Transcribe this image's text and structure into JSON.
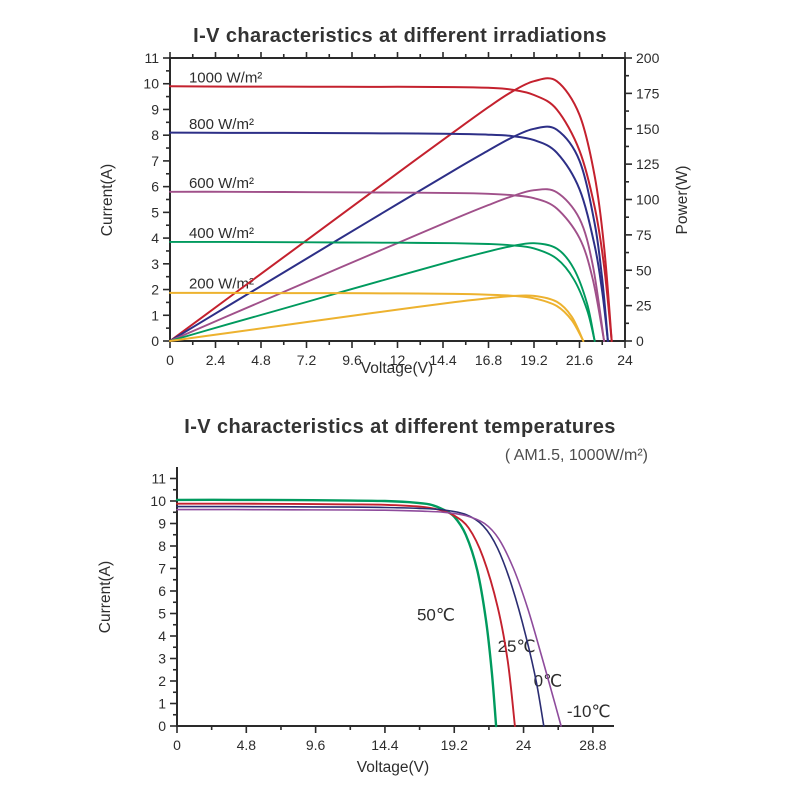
{
  "page": {
    "background": "#ffffff"
  },
  "chart_data": [
    {
      "type": "line",
      "title": "I-V characteristics at different irradiations",
      "xlabel": "Voltage(V)",
      "ylabel_left": "Current(A)",
      "ylabel_right": "Power(W)",
      "xlim": [
        0,
        24
      ],
      "ylim_left": [
        0,
        11
      ],
      "ylim_right": [
        0,
        200
      ],
      "grid": false,
      "frame": "box",
      "x_ticks": [
        "0",
        "2.4",
        "4.8",
        "7.2",
        "9.6",
        "12",
        "14.4",
        "16.8",
        "19.2",
        "21.6",
        "24"
      ],
      "x_minor_step": 1.2,
      "y_left_ticks": [
        "0",
        "1",
        "2",
        "3",
        "4",
        "5",
        "6",
        "7",
        "8",
        "9",
        "10",
        "11"
      ],
      "y_left_minor_step": 0.5,
      "y_right_ticks": [
        "0",
        "25",
        "50",
        "75",
        "100",
        "125",
        "150",
        "175",
        "200"
      ],
      "y_right_minor_step": 12.5,
      "labels": [
        {
          "text": "1000 W/m²",
          "x": 1.0,
          "y": 10.05,
          "anchor": "start",
          "color": "#3a3a3a"
        },
        {
          "text": "800 W/m²",
          "x": 1.0,
          "y": 8.25,
          "anchor": "start",
          "color": "#3a3a3a"
        },
        {
          "text": "600 W/m²",
          "x": 1.0,
          "y": 5.95,
          "anchor": "start",
          "color": "#3a3a3a"
        },
        {
          "text": "400 W/m²",
          "x": 1.0,
          "y": 4.0,
          "anchor": "start",
          "color": "#3a3a3a"
        },
        {
          "text": "200 W/m²",
          "x": 1.0,
          "y": 2.04,
          "anchor": "start",
          "color": "#3a3a3a"
        }
      ],
      "series": [
        {
          "name": "1000 W/m2 current",
          "axis": "left",
          "color": "#c4212e",
          "width": 2,
          "points": [
            [
              0,
              9.9
            ],
            [
              3,
              9.89
            ],
            [
              6,
              9.89
            ],
            [
              9,
              9.88
            ],
            [
              12,
              9.88
            ],
            [
              15,
              9.87
            ],
            [
              16.8,
              9.84
            ],
            [
              18,
              9.77
            ],
            [
              19.2,
              9.56
            ],
            [
              20.4,
              9.0
            ],
            [
              21.6,
              7.4
            ],
            [
              22.4,
              5.2
            ],
            [
              22.9,
              2.9
            ],
            [
              23.3,
              0
            ]
          ]
        },
        {
          "name": "1000 W/m2 power",
          "axis": "right",
          "color": "#c4212e",
          "width": 2,
          "points": [
            [
              0,
              0
            ],
            [
              3,
              29.7
            ],
            [
              6,
              59.3
            ],
            [
              9,
              88.9
            ],
            [
              12,
              118.6
            ],
            [
              15,
              148
            ],
            [
              16.8,
              165.3
            ],
            [
              18,
              175.9
            ],
            [
              19.2,
              183.6
            ],
            [
              20.4,
              183.6
            ],
            [
              21.6,
              159.8
            ],
            [
              22.4,
              116.5
            ],
            [
              22.9,
              66.4
            ],
            [
              23.3,
              0
            ]
          ]
        },
        {
          "name": "800 W/m2 current",
          "axis": "left",
          "color": "#2d2f87",
          "width": 2,
          "points": [
            [
              0,
              8.1
            ],
            [
              3,
              8.09
            ],
            [
              6,
              8.09
            ],
            [
              9,
              8.08
            ],
            [
              12,
              8.07
            ],
            [
              15,
              8.05
            ],
            [
              16.8,
              8.02
            ],
            [
              18,
              7.97
            ],
            [
              19.2,
              7.81
            ],
            [
              20.4,
              7.32
            ],
            [
              21.6,
              5.9
            ],
            [
              22.4,
              3.7
            ],
            [
              22.8,
              1.9
            ],
            [
              23.1,
              0
            ]
          ]
        },
        {
          "name": "800 W/m2 power",
          "axis": "right",
          "color": "#2d2f87",
          "width": 2,
          "points": [
            [
              0,
              0
            ],
            [
              3,
              24.3
            ],
            [
              6,
              48.5
            ],
            [
              9,
              72.7
            ],
            [
              12,
              96.8
            ],
            [
              15,
              120.8
            ],
            [
              16.8,
              134.7
            ],
            [
              18,
              143.5
            ],
            [
              19.2,
              150
            ],
            [
              20.4,
              149.3
            ],
            [
              21.6,
              127.4
            ],
            [
              22.4,
              82.9
            ],
            [
              22.8,
              43.3
            ],
            [
              23.1,
              0
            ]
          ]
        },
        {
          "name": "600 W/m2 current",
          "axis": "left",
          "color": "#a0508a",
          "width": 1.9,
          "points": [
            [
              0,
              5.8
            ],
            [
              3,
              5.8
            ],
            [
              6,
              5.79
            ],
            [
              9,
              5.78
            ],
            [
              12,
              5.77
            ],
            [
              15,
              5.75
            ],
            [
              16.8,
              5.72
            ],
            [
              18,
              5.67
            ],
            [
              19.2,
              5.55
            ],
            [
              20.4,
              5.15
            ],
            [
              21.6,
              4.0
            ],
            [
              22.3,
              2.4
            ],
            [
              22.9,
              0
            ]
          ]
        },
        {
          "name": "600 W/m2 power",
          "axis": "right",
          "color": "#a0508a",
          "width": 1.9,
          "points": [
            [
              0,
              0
            ],
            [
              3,
              17.4
            ],
            [
              6,
              34.7
            ],
            [
              9,
              52
            ],
            [
              12,
              69.2
            ],
            [
              15,
              86.3
            ],
            [
              16.8,
              96.1
            ],
            [
              18,
              102.1
            ],
            [
              19.2,
              106.6
            ],
            [
              20.4,
              105.1
            ],
            [
              21.6,
              86.4
            ],
            [
              22.3,
              53.5
            ],
            [
              22.9,
              0
            ]
          ]
        },
        {
          "name": "400 W/m2 current",
          "axis": "left",
          "color": "#009a5e",
          "width": 1.9,
          "points": [
            [
              0,
              3.85
            ],
            [
              3,
              3.85
            ],
            [
              6,
              3.84
            ],
            [
              9,
              3.83
            ],
            [
              12,
              3.82
            ],
            [
              15,
              3.8
            ],
            [
              16.8,
              3.77
            ],
            [
              18,
              3.72
            ],
            [
              19.2,
              3.6
            ],
            [
              20.4,
              3.2
            ],
            [
              21.3,
              2.4
            ],
            [
              22,
              1.2
            ],
            [
              22.4,
              0
            ]
          ]
        },
        {
          "name": "400 W/m2 power",
          "axis": "right",
          "color": "#009a5e",
          "width": 1.9,
          "points": [
            [
              0,
              0
            ],
            [
              3,
              11.6
            ],
            [
              6,
              23
            ],
            [
              9,
              34.5
            ],
            [
              12,
              45.8
            ],
            [
              15,
              57
            ],
            [
              16.8,
              63.3
            ],
            [
              18,
              67
            ],
            [
              19.2,
              69.1
            ],
            [
              20.4,
              65.3
            ],
            [
              21.3,
              51.1
            ],
            [
              22,
              26.4
            ],
            [
              22.4,
              0
            ]
          ]
        },
        {
          "name": "200 W/m2 current",
          "axis": "left",
          "color": "#edb22f",
          "width": 2,
          "points": [
            [
              0,
              1.87
            ],
            [
              3,
              1.87
            ],
            [
              6,
              1.86
            ],
            [
              9,
              1.86
            ],
            [
              12,
              1.85
            ],
            [
              15,
              1.83
            ],
            [
              16.8,
              1.8
            ],
            [
              18,
              1.76
            ],
            [
              19.2,
              1.66
            ],
            [
              20.4,
              1.36
            ],
            [
              21.2,
              0.8
            ],
            [
              21.8,
              0
            ]
          ]
        },
        {
          "name": "200 W/m2 power",
          "axis": "right",
          "color": "#edb22f",
          "width": 2,
          "points": [
            [
              0,
              0
            ],
            [
              3,
              5.6
            ],
            [
              6,
              11.2
            ],
            [
              9,
              16.7
            ],
            [
              12,
              22.2
            ],
            [
              15,
              27.5
            ],
            [
              16.8,
              30.2
            ],
            [
              18,
              31.7
            ],
            [
              19.2,
              31.9
            ],
            [
              20.4,
              27.7
            ],
            [
              21.2,
              17
            ],
            [
              21.8,
              0
            ]
          ]
        }
      ]
    },
    {
      "type": "line",
      "title": "I-V characteristics at different temperatures",
      "subtitle": "( AM1.5,  1000W/m²)",
      "xlabel": "Voltage(V)",
      "ylabel_left": "Current(A)",
      "xlim": [
        0,
        28.8
      ],
      "ylim_left": [
        0,
        11
      ],
      "grid": false,
      "frame": "axes",
      "x_ticks": [
        "0",
        "4.8",
        "9.6",
        "14.4",
        "19.2",
        "24",
        "28.8"
      ],
      "x_minor_step": 2.4,
      "y_left_ticks": [
        "0",
        "1",
        "2",
        "3",
        "4",
        "5",
        "6",
        "7",
        "8",
        "9",
        "10",
        "11"
      ],
      "y_left_minor_step": 0.5,
      "labels": [
        {
          "text": "50℃",
          "x": 19.25,
          "y": 4.7,
          "anchor": "end",
          "color": "#009a5e"
        },
        {
          "text": "25℃",
          "x": 22.2,
          "y": 3.3,
          "anchor": "start",
          "color": "#c4212e"
        },
        {
          "text": "0℃",
          "x": 24.7,
          "y": 1.75,
          "anchor": "start",
          "color": "#2b2d72"
        },
        {
          "text": "-10℃",
          "x": 27.0,
          "y": 0.4,
          "anchor": "start",
          "color": "#8e4b9c"
        }
      ],
      "series": [
        {
          "name": "50C",
          "axis": "left",
          "color": "#009a5e",
          "width": 2.4,
          "points": [
            [
              0,
              10.05
            ],
            [
              4,
              10.05
            ],
            [
              8,
              10.04
            ],
            [
              12,
              10.02
            ],
            [
              14.4,
              10
            ],
            [
              16,
              9.95
            ],
            [
              17.5,
              9.85
            ],
            [
              18.5,
              9.6
            ],
            [
              19.2,
              9.3
            ],
            [
              20,
              8.5
            ],
            [
              20.8,
              6.9
            ],
            [
              21.4,
              4.7
            ],
            [
              21.8,
              2.4
            ],
            [
              22.1,
              0
            ]
          ]
        },
        {
          "name": "25C",
          "axis": "left",
          "color": "#c4212e",
          "width": 1.9,
          "points": [
            [
              0,
              9.88
            ],
            [
              4,
              9.88
            ],
            [
              8,
              9.87
            ],
            [
              12,
              9.85
            ],
            [
              14.4,
              9.83
            ],
            [
              16.8,
              9.75
            ],
            [
              18.2,
              9.6
            ],
            [
              19.2,
              9.35
            ],
            [
              20.2,
              8.8
            ],
            [
              21.2,
              7.5
            ],
            [
              22.2,
              5.3
            ],
            [
              22.9,
              2.9
            ],
            [
              23.4,
              0
            ]
          ]
        },
        {
          "name": "0C",
          "axis": "left",
          "color": "#2b2d72",
          "width": 1.6,
          "points": [
            [
              0,
              9.75
            ],
            [
              4,
              9.75
            ],
            [
              8,
              9.74
            ],
            [
              12,
              9.73
            ],
            [
              14.4,
              9.71
            ],
            [
              16.8,
              9.67
            ],
            [
              18.5,
              9.6
            ],
            [
              20,
              9.4
            ],
            [
              21.2,
              8.9
            ],
            [
              22.2,
              7.9
            ],
            [
              23.2,
              6.2
            ],
            [
              24.2,
              3.9
            ],
            [
              24.9,
              1.9
            ],
            [
              25.4,
              0
            ]
          ]
        },
        {
          "name": "-10C",
          "axis": "left",
          "color": "#8e4b9c",
          "width": 1.6,
          "points": [
            [
              0,
              9.62
            ],
            [
              4,
              9.62
            ],
            [
              8,
              9.61
            ],
            [
              12,
              9.6
            ],
            [
              14.4,
              9.59
            ],
            [
              16.8,
              9.55
            ],
            [
              18.5,
              9.5
            ],
            [
              20,
              9.35
            ],
            [
              21.3,
              9
            ],
            [
              22.3,
              8.3
            ],
            [
              23.3,
              7
            ],
            [
              24.3,
              5.2
            ],
            [
              25.3,
              3
            ],
            [
              26,
              1.4
            ],
            [
              26.6,
              0
            ]
          ]
        }
      ]
    }
  ]
}
